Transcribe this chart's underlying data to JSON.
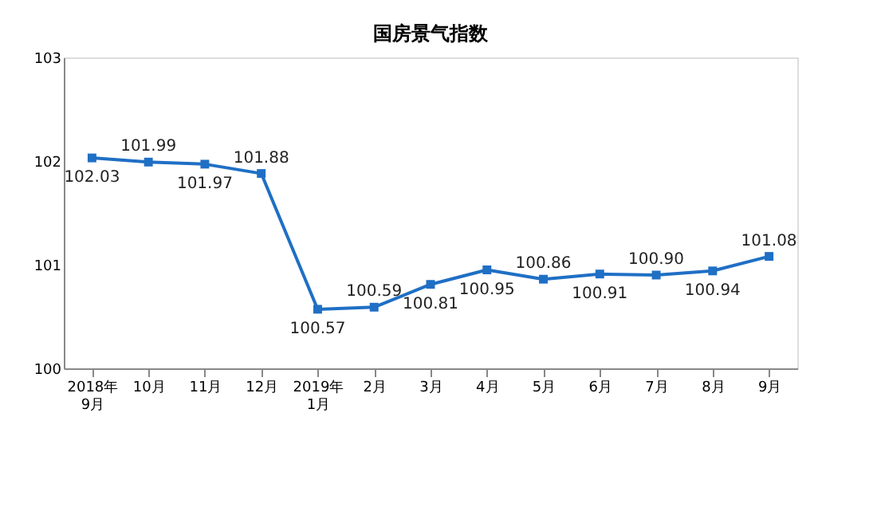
{
  "chart_data": {
    "type": "line",
    "title": "国房景气指数",
    "categories": [
      "2018年\n9月",
      "10月",
      "11月",
      "12月",
      "2019年\n1月",
      "2月",
      "3月",
      "4月",
      "5月",
      "6月",
      "7月",
      "8月",
      "9月"
    ],
    "series": [
      {
        "color": "#1f6fc5",
        "values": [
          102.03,
          101.99,
          101.97,
          101.88,
          100.57,
          100.59,
          100.81,
          100.95,
          100.86,
          100.91,
          100.9,
          100.94,
          101.08
        ]
      }
    ],
    "ylim": [
      100,
      103
    ],
    "yticks": [
      100,
      101,
      102,
      103
    ],
    "grid": false,
    "marker": "square",
    "line_style": "solid",
    "value_labels": [
      "102.03",
      "101.99",
      "101.97",
      "101.88",
      "100.57",
      "100.59",
      "100.81",
      "100.95",
      "100.86",
      "100.91",
      "100.90",
      "100.94",
      "101.08"
    ]
  }
}
